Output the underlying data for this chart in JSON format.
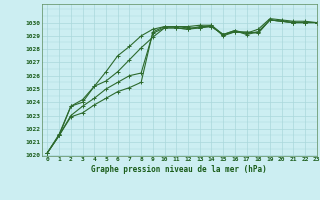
{
  "xlabel": "Graphe pression niveau de la mer (hPa)",
  "bg_color": "#cceef2",
  "grid_color": "#aad8dc",
  "line_color": "#2d6a2d",
  "xlim": [
    -0.5,
    23
  ],
  "ylim": [
    1020,
    1031
  ],
  "yticks": [
    1020,
    1021,
    1022,
    1023,
    1024,
    1025,
    1026,
    1027,
    1028,
    1029,
    1030
  ],
  "xticks": [
    0,
    1,
    2,
    3,
    4,
    5,
    6,
    7,
    8,
    9,
    10,
    11,
    12,
    13,
    14,
    15,
    16,
    17,
    18,
    19,
    20,
    21,
    22,
    23
  ],
  "series": [
    [
      1020.2,
      1021.5,
      1022.9,
      1023.2,
      1023.8,
      1024.3,
      1024.8,
      1025.1,
      1025.5,
      1029.3,
      1029.7,
      1029.7,
      1029.6,
      1029.6,
      1029.8,
      1029.0,
      1029.3,
      1029.3,
      1029.2,
      1030.2,
      1030.1,
      1030.0,
      1030.0,
      1030.0
    ],
    [
      1020.2,
      1021.5,
      1023.0,
      1023.7,
      1024.3,
      1025.0,
      1025.5,
      1026.0,
      1026.2,
      1029.2,
      1029.6,
      1029.6,
      1029.5,
      1029.6,
      1029.7,
      1029.1,
      1029.3,
      1029.2,
      1029.3,
      1030.2,
      1030.1,
      1030.0,
      1030.0,
      1030.0
    ],
    [
      1020.2,
      1021.5,
      1023.7,
      1024.0,
      1025.2,
      1025.6,
      1026.3,
      1027.2,
      1028.1,
      1028.9,
      1029.6,
      1029.6,
      1029.5,
      1029.7,
      1029.7,
      1029.1,
      1029.4,
      1029.1,
      1029.3,
      1030.2,
      1030.1,
      1030.0,
      1030.0,
      1030.0
    ],
    [
      1020.2,
      1021.6,
      1023.7,
      1024.2,
      1025.2,
      1026.3,
      1027.5,
      1028.2,
      1029.0,
      1029.5,
      1029.7,
      1029.7,
      1029.7,
      1029.8,
      1029.8,
      1029.1,
      1029.4,
      1029.2,
      1029.5,
      1030.3,
      1030.2,
      1030.1,
      1030.1,
      1030.0
    ]
  ]
}
